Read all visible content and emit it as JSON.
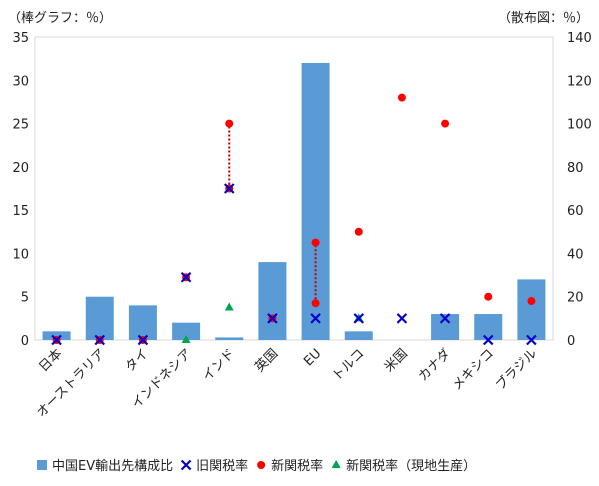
{
  "chart_data": {
    "type": "bar",
    "left_axis_unit": "（棒グラフ：％）",
    "right_axis_unit": "（散布図：％）",
    "categories": [
      "日本",
      "オーストラリア",
      "タイ",
      "インドネシア",
      "インド",
      "英国",
      "EU",
      "トルコ",
      "米国",
      "カナダ",
      "メキシコ",
      "ブラジル"
    ],
    "ylim_left": [
      0,
      35
    ],
    "yticks_left": [
      0,
      5,
      10,
      15,
      20,
      25,
      30,
      35
    ],
    "ylim_right": [
      0,
      140
    ],
    "yticks_right": [
      0,
      20,
      40,
      60,
      80,
      100,
      120,
      140
    ],
    "series": [
      {
        "name": "中国EV輸出先構成比",
        "kind": "bar",
        "axis": "left",
        "color": "#5b9bd5",
        "values": [
          1.0,
          5.0,
          4.0,
          2.0,
          0.3,
          9.0,
          32.0,
          1.0,
          0.0,
          3.0,
          3.0,
          7.0
        ]
      },
      {
        "name": "旧関税率",
        "kind": "cross",
        "axis": "right",
        "color": "#0000cc",
        "values": [
          0,
          0,
          0,
          29,
          70,
          10,
          10,
          10,
          10,
          10,
          0,
          0
        ]
      },
      {
        "name": "新関税率",
        "kind": "dot",
        "axis": "right",
        "color": "#ff0000",
        "values": [
          0,
          0,
          0,
          29,
          100,
          10,
          17,
          50,
          112,
          100,
          20,
          18
        ]
      },
      {
        "name": "新関税率（現地生産）",
        "kind": "triangle",
        "axis": "right",
        "color": "#00a550",
        "values": [
          null,
          null,
          null,
          0,
          15,
          null,
          null,
          10,
          null,
          null,
          null,
          null
        ]
      }
    ],
    "connectors": [
      {
        "category": "インド",
        "from": 70,
        "to": 100,
        "axis": "right",
        "color": "#c00000"
      },
      {
        "category": "EU",
        "from": 17,
        "to": 45,
        "axis": "right",
        "color": "#c00000"
      }
    ],
    "extra_points": [
      {
        "category": "インド",
        "value": 70,
        "kind": "dot",
        "color": "#ff0000",
        "axis": "right"
      },
      {
        "category": "EU",
        "value": 45,
        "kind": "dot",
        "color": "#ff0000",
        "axis": "right"
      }
    ],
    "legend_position": "bottom",
    "grid": false
  }
}
